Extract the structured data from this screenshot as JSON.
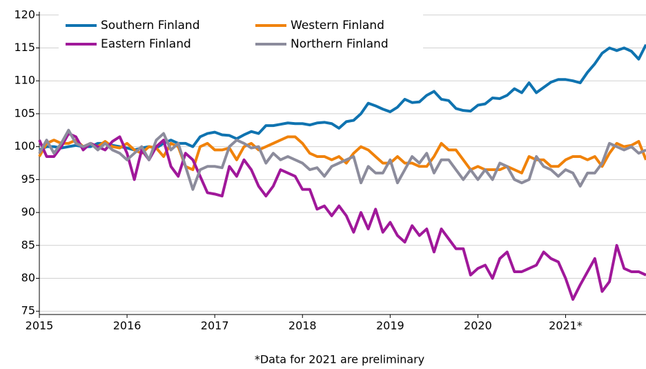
{
  "chart_data": {
    "type": "line",
    "footnote": "*Data for 2021 are preliminary",
    "categories": [
      "2015",
      null,
      null,
      null,
      null,
      null,
      null,
      null,
      null,
      null,
      null,
      null,
      "2016",
      null,
      null,
      null,
      null,
      null,
      null,
      null,
      null,
      null,
      null,
      null,
      "2017",
      null,
      null,
      null,
      null,
      null,
      null,
      null,
      null,
      null,
      null,
      null,
      "2018",
      null,
      null,
      null,
      null,
      null,
      null,
      null,
      null,
      null,
      null,
      null,
      "2019",
      null,
      null,
      null,
      null,
      null,
      null,
      null,
      null,
      null,
      null,
      null,
      "2020",
      null,
      null,
      null,
      null,
      null,
      null,
      null,
      null,
      null,
      null,
      null,
      "2021*",
      null,
      null,
      null,
      null,
      null,
      null,
      null,
      null,
      null,
      null,
      null
    ],
    "ylim": [
      74.5,
      120.5
    ],
    "yticks": [
      75,
      80,
      85,
      90,
      95,
      100,
      105,
      110,
      115,
      120
    ],
    "grid": true,
    "series": [
      {
        "name": "Southern Finland",
        "color": "#0f73b0",
        "values": [
          99.5,
          100,
          100,
          99.8,
          100,
          100.2,
          100,
          100,
          100.5,
          100.5,
          100.2,
          100,
          99.8,
          99.5,
          99.8,
          100,
          99.8,
          100.5,
          101,
          100.5,
          100.5,
          100,
          101.5,
          102,
          102.2,
          101.8,
          101.7,
          101.2,
          101.8,
          102.3,
          102,
          103.2,
          103.2,
          103.4,
          103.6,
          103.5,
          103.5,
          103.3,
          103.6,
          103.7,
          103.5,
          102.8,
          103.8,
          104,
          105,
          106.6,
          106.2,
          105.7,
          105.3,
          106,
          107.2,
          106.7,
          106.8,
          107.8,
          108.4,
          107.2,
          107,
          105.8,
          105.5,
          105.4,
          106.3,
          106.5,
          107.4,
          107.3,
          107.8,
          108.8,
          108.2,
          109.7,
          108.2,
          109,
          109.8,
          110.2,
          110.2,
          110,
          109.7,
          111.3,
          112.6,
          114.2,
          115,
          114.6,
          115,
          114.5,
          113.3,
          115.5
        ]
      },
      {
        "name": "Western Finland",
        "color": "#f0820a",
        "values": [
          98.5,
          100.5,
          101,
          100.5,
          100.5,
          101,
          100,
          100.5,
          100,
          100.8,
          100,
          99.8,
          100.5,
          99.5,
          99,
          100,
          99.8,
          98.5,
          100.5,
          100,
          97,
          96.5,
          100,
          100.5,
          99.5,
          99.5,
          99.8,
          98,
          100,
          100.5,
          99.5,
          100,
          100.5,
          101,
          101.5,
          101.5,
          100.5,
          99,
          98.5,
          98.5,
          98,
          98.5,
          97.5,
          99,
          100,
          99.5,
          98.5,
          97.5,
          97.5,
          98.5,
          97.5,
          97.5,
          97,
          97,
          98.5,
          100.5,
          99.5,
          99.5,
          98,
          96.5,
          97,
          96.5,
          96.5,
          96.5,
          97,
          96.5,
          96,
          98.5,
          98,
          98,
          97,
          97,
          98,
          98.5,
          98.5,
          98,
          98.5,
          97,
          99,
          100.5,
          100,
          100.2,
          100.8,
          98
        ]
      },
      {
        "name": "Eastern Finland",
        "color": "#a0189a",
        "values": [
          101,
          98.5,
          98.5,
          100,
          102,
          101.5,
          99.5,
          100.5,
          100,
          99.5,
          100.8,
          101.5,
          99,
          95,
          99.5,
          98,
          100,
          101,
          97,
          95.5,
          99,
          98,
          95.5,
          93,
          92.8,
          92.5,
          97,
          95.5,
          98,
          96.5,
          94,
          92.5,
          94,
          96.5,
          96,
          95.5,
          93.5,
          93.5,
          90.5,
          91,
          89.5,
          91,
          89.5,
          87,
          90,
          87.5,
          90.5,
          87,
          88.5,
          86.5,
          85.5,
          88,
          86.5,
          87.5,
          84,
          87.5,
          86,
          84.5,
          84.5,
          80.5,
          81.5,
          82,
          80,
          83,
          84,
          81,
          81,
          81.5,
          82,
          84,
          83,
          82.5,
          80,
          76.8,
          79,
          81,
          83,
          78,
          79.5,
          85,
          81.5,
          81,
          81,
          80.5
        ]
      },
      {
        "name": "Northern Finland",
        "color": "#8c8c9c",
        "values": [
          99,
          101,
          99,
          100.5,
          102.5,
          100.5,
          100,
          100.5,
          99.5,
          100.5,
          99.5,
          99,
          98,
          99,
          100,
          98,
          101,
          102,
          99.5,
          100.5,
          97,
          93.5,
          96.5,
          97,
          97,
          96.8,
          100,
          101,
          100.5,
          99.8,
          100,
          97.5,
          99,
          98,
          98.5,
          98,
          97.5,
          96.5,
          96.8,
          95.5,
          97,
          97.5,
          98,
          98.5,
          94.5,
          97,
          96,
          96,
          98,
          94.5,
          96.5,
          98.5,
          97.5,
          99,
          96,
          98,
          98,
          96.5,
          95,
          96.5,
          95,
          96.5,
          95,
          97.5,
          97,
          95,
          94.5,
          95,
          98.5,
          97,
          96.5,
          95.5,
          96.5,
          96,
          94,
          96,
          96,
          97.5,
          100.5,
          100,
          99.5,
          100,
          99,
          99.5
        ]
      }
    ]
  }
}
